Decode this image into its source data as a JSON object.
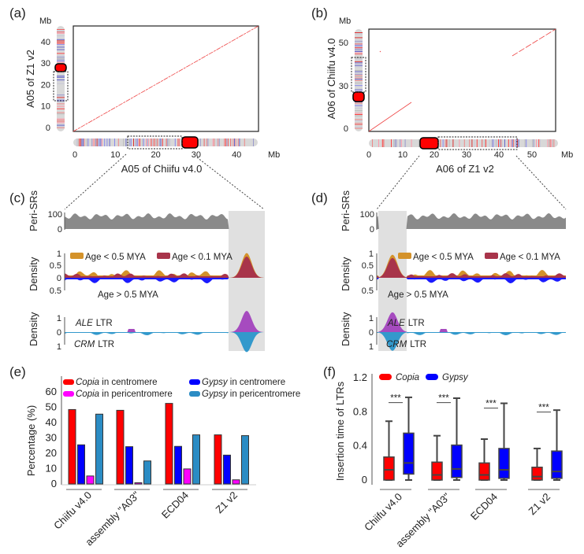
{
  "panels": {
    "a": {
      "label": "(a)",
      "xlabel": "A05 of Chiifu v4.0",
      "ylabel": "A05 of Z1 v2",
      "unit": "Mb",
      "xticks": [
        "0",
        "10",
        "20",
        "30",
        "40"
      ],
      "yticks": [
        "0",
        "10",
        "20",
        "30",
        "40"
      ],
      "xmax": 45,
      "ymax": 46
    },
    "b": {
      "label": "(b)",
      "xlabel": "A06 of Z1 v2",
      "ylabel": "A06 of Chiifu v4.0",
      "unit": "Mb",
      "xticks": [
        "0",
        "10",
        "20",
        "30",
        "40",
        "50"
      ],
      "yticks": [
        "0",
        "30",
        "50"
      ],
      "xmax": 57,
      "ymax": 57
    },
    "c": {
      "label": "(c)",
      "peri_label": "Peri-SRs",
      "peri_ticks": [
        "100",
        "0"
      ],
      "density_label": "Density",
      "density_ticks": [
        "1",
        "0.5",
        "0",
        "0.5"
      ],
      "legend": [
        "Age < 0.5 MYA",
        "Age < 0.1 MYA"
      ],
      "below_label": "Age > 0.5 MYA",
      "ltr_ticks": [
        "1",
        "0",
        "1"
      ],
      "ale_label": "ALE",
      "crm_label": "CRM",
      "ltr_suffix": "LTR"
    },
    "d": {
      "label": "(d)",
      "peri_label": "Peri-SRs",
      "peri_ticks": [
        "100",
        "0"
      ],
      "density_label": "Density",
      "density_ticks": [
        "1",
        "0.5",
        "0",
        "0.5"
      ],
      "legend": [
        "Age < 0.5 MYA",
        "Age < 0.1 MYA"
      ],
      "below_label": "Age > 0.5 MYA",
      "ltr_ticks": [
        "1",
        "0",
        "1"
      ],
      "ale_label": "ALE",
      "crm_label": "CRM",
      "ltr_suffix": "LTR"
    }
  },
  "colors": {
    "copia_cen": "#ff0000",
    "copia_peri": "#ff00ff",
    "gypsy_cen": "#0000ff",
    "gypsy_peri": "#2b8cc4",
    "age05": "#d4922a",
    "age01": "#a8344a",
    "old": "#1a1aff",
    "ale": "#a64bbf",
    "crm": "#3399cc",
    "shade": "#e0e0e0"
  },
  "chart_data": [
    {
      "panel": "(e)",
      "type": "bar",
      "ylabel": "Percentage (%)",
      "ylim": [
        0,
        65
      ],
      "yticks": [
        "0",
        "10",
        "20",
        "30",
        "40",
        "50",
        "60"
      ],
      "categories": [
        "Chiifu v4.0",
        "assembly \"A03\"",
        "ECD04",
        "Z1 v2"
      ],
      "series": [
        {
          "name": "Copia in centromere",
          "italic": "Copia",
          "rest": " in centromere",
          "color": "#ff0000",
          "values": [
            48.5,
            48,
            52.5,
            32
          ]
        },
        {
          "name": "Gypsy in centromere",
          "italic": "Gypsy",
          "rest": " in centromere",
          "color": "#0000ff",
          "values": [
            25.5,
            24.3,
            24.5,
            18.8
          ]
        },
        {
          "name": "Copia in pericentromere",
          "italic": "Copia",
          "rest": " in pericentromere",
          "color": "#ff00ff",
          "values": [
            5.2,
            0.8,
            9.8,
            2.7
          ]
        },
        {
          "name": "Gypsy in pericentromere",
          "italic": "Gypsy",
          "rest": " in pericentromere",
          "color": "#2b8cc4",
          "values": [
            45.5,
            15,
            32,
            31.5
          ]
        }
      ],
      "legend": "top"
    },
    {
      "panel": "(f)",
      "type": "box",
      "ylabel": "Insertion time of LTRs",
      "ylim": [
        0,
        1.2
      ],
      "yticks": [
        "0",
        "0.4",
        "0.8",
        "1.2"
      ],
      "categories": [
        "Chiifu v4.0",
        "assembly \"A03\"",
        "ECD04",
        "Z1 v2"
      ],
      "significance": [
        "***",
        "***",
        "***",
        "***"
      ],
      "series": [
        {
          "name": "Copia",
          "color": "#ff0000",
          "boxes": [
            [
              0,
              0,
              0.12,
              0.27,
              0.69
            ],
            [
              0,
              0,
              0.06,
              0.21,
              0.52
            ],
            [
              0,
              0,
              0.06,
              0.2,
              0.48
            ],
            [
              0,
              0,
              0.04,
              0.15,
              0.37
            ]
          ]
        },
        {
          "name": "Gypsy",
          "color": "#0000ff",
          "boxes": [
            [
              0,
              0.07,
              0.2,
              0.55,
              0.97
            ],
            [
              0,
              0.03,
              0.13,
              0.41,
              0.96
            ],
            [
              0,
              0.02,
              0.12,
              0.37,
              0.9
            ],
            [
              0,
              0.02,
              0.1,
              0.34,
              0.82
            ]
          ]
        }
      ],
      "legend": "top"
    }
  ]
}
